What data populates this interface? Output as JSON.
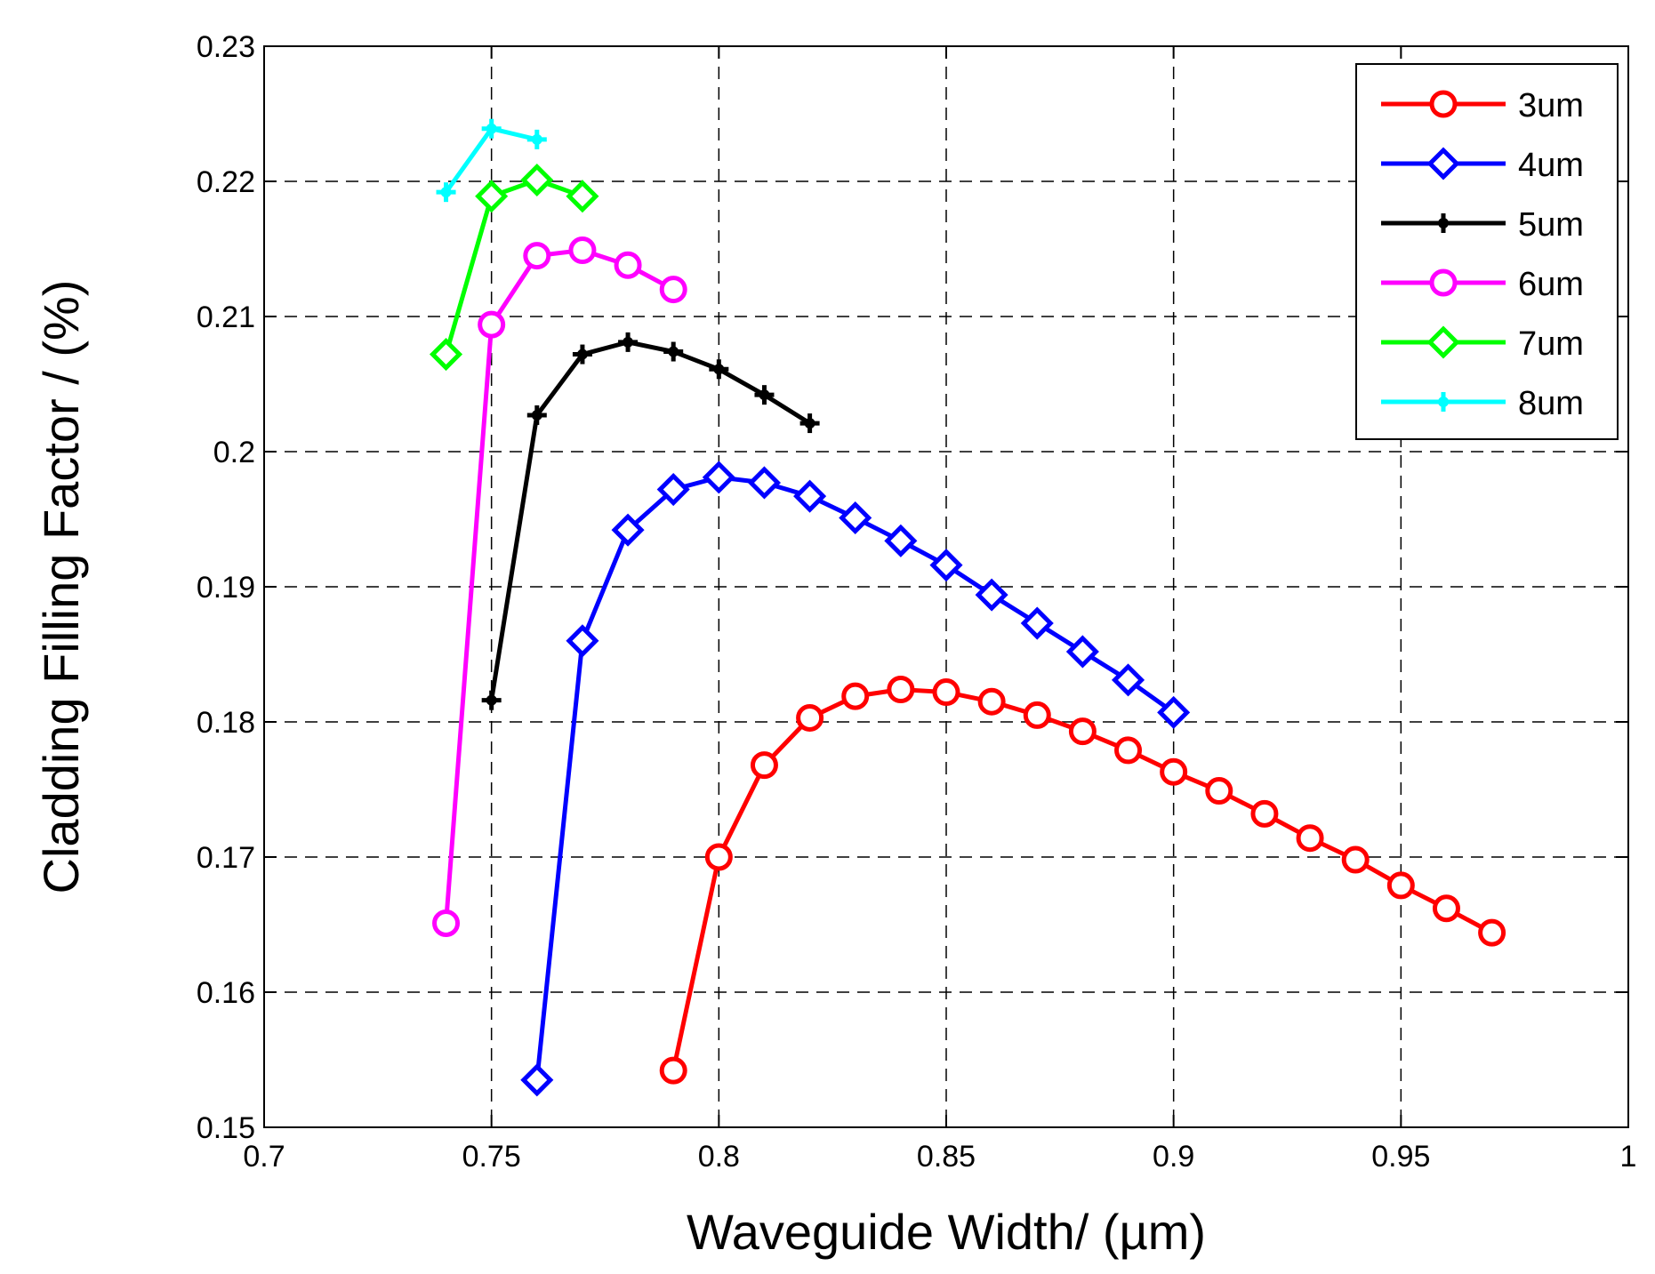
{
  "chart_data": {
    "type": "line",
    "title": "",
    "xlabel": "Waveguide Width/ (µm)",
    "ylabel": "Cladding Filling Factor / (%)",
    "xlim": [
      0.7,
      1.0
    ],
    "ylim": [
      0.15,
      0.23
    ],
    "xticks": [
      0.7,
      0.75,
      0.8,
      0.85,
      0.9,
      0.95,
      1.0
    ],
    "xtick_labels": [
      "0.7",
      "0.75",
      "0.8",
      "0.85",
      "0.9",
      "0.95",
      "1"
    ],
    "yticks": [
      0.15,
      0.16,
      0.17,
      0.18,
      0.19,
      0.2,
      0.21,
      0.22,
      0.23
    ],
    "ytick_labels": [
      "0.15",
      "0.16",
      "0.17",
      "0.18",
      "0.19",
      "0.2",
      "0.21",
      "0.22",
      "0.23"
    ],
    "grid": true,
    "legend_position": "top-right",
    "series": [
      {
        "name": "3um",
        "color": "#ff0000",
        "marker": "circle",
        "x": [
          0.79,
          0.8,
          0.81,
          0.82,
          0.83,
          0.84,
          0.85,
          0.86,
          0.87,
          0.88,
          0.89,
          0.9,
          0.91,
          0.92,
          0.93,
          0.94,
          0.95,
          0.96,
          0.97
        ],
        "y": [
          0.1542,
          0.17,
          0.1768,
          0.1803,
          0.1819,
          0.1824,
          0.1822,
          0.1815,
          0.1805,
          0.1793,
          0.1779,
          0.1763,
          0.1749,
          0.1732,
          0.1714,
          0.1698,
          0.1679,
          0.1662,
          0.1644
        ]
      },
      {
        "name": "4um",
        "color": "#0000ff",
        "marker": "diamond",
        "x": [
          0.76,
          0.77,
          0.78,
          0.79,
          0.8,
          0.81,
          0.82,
          0.83,
          0.84,
          0.85,
          0.86,
          0.87,
          0.88,
          0.89,
          0.9
        ],
        "y": [
          0.1535,
          0.186,
          0.1942,
          0.1972,
          0.1981,
          0.1977,
          0.1967,
          0.1951,
          0.1934,
          0.1916,
          0.1894,
          0.1873,
          0.1852,
          0.1831,
          0.1807
        ]
      },
      {
        "name": "5um",
        "color": "#000000",
        "marker": "plus",
        "x": [
          0.75,
          0.76,
          0.77,
          0.78,
          0.79,
          0.8,
          0.81,
          0.82
        ],
        "y": [
          0.1816,
          0.2027,
          0.2072,
          0.2081,
          0.2074,
          0.2061,
          0.2042,
          0.2021
        ]
      },
      {
        "name": "6um",
        "color": "#ff00ff",
        "marker": "circle",
        "x": [
          0.74,
          0.75,
          0.76,
          0.77,
          0.78,
          0.79
        ],
        "y": [
          0.1651,
          0.2094,
          0.2145,
          0.2149,
          0.2138,
          0.212
        ]
      },
      {
        "name": "7um",
        "color": "#00ff00",
        "marker": "diamond",
        "x": [
          0.74,
          0.75,
          0.76,
          0.77
        ],
        "y": [
          0.2072,
          0.2189,
          0.2201,
          0.2189
        ]
      },
      {
        "name": "8um",
        "color": "#00ffff",
        "marker": "plus",
        "x": [
          0.74,
          0.75,
          0.76
        ],
        "y": [
          0.2192,
          0.2239,
          0.2231
        ]
      }
    ]
  }
}
